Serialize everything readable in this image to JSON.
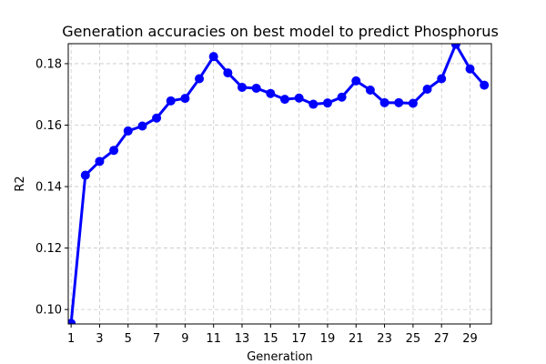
{
  "chart_data": {
    "type": "line",
    "title": "Generation accuracies on best model to predict Phosphorus",
    "xlabel": "Generation",
    "ylabel": "R2",
    "xlim": [
      0.8,
      30.5
    ],
    "ylim": [
      0.0953,
      0.1865
    ],
    "xticks": [
      1,
      3,
      5,
      7,
      9,
      11,
      13,
      15,
      17,
      19,
      21,
      23,
      25,
      27,
      29
    ],
    "yticks": [
      0.1,
      0.12,
      0.14,
      0.16,
      0.18
    ],
    "ytick_labels": [
      "0.10",
      "0.12",
      "0.14",
      "0.16",
      "0.18"
    ],
    "grid": true,
    "series": [
      {
        "color": "#0000ff",
        "marker": "circle",
        "x": [
          1,
          2,
          3,
          4,
          5,
          6,
          7,
          8,
          9,
          10,
          11,
          12,
          13,
          14,
          15,
          16,
          17,
          18,
          19,
          20,
          21,
          22,
          23,
          24,
          25,
          26,
          27,
          28,
          29,
          30
        ],
        "y": [
          0.0955,
          0.1437,
          0.1482,
          0.1518,
          0.1581,
          0.1597,
          0.1623,
          0.1679,
          0.1687,
          0.1751,
          0.1823,
          0.177,
          0.1723,
          0.172,
          0.1703,
          0.1684,
          0.1688,
          0.1668,
          0.1672,
          0.1691,
          0.1744,
          0.1714,
          0.1673,
          0.1673,
          0.1671,
          0.1717,
          0.1751,
          0.1863,
          0.1783,
          0.173
        ]
      }
    ]
  }
}
